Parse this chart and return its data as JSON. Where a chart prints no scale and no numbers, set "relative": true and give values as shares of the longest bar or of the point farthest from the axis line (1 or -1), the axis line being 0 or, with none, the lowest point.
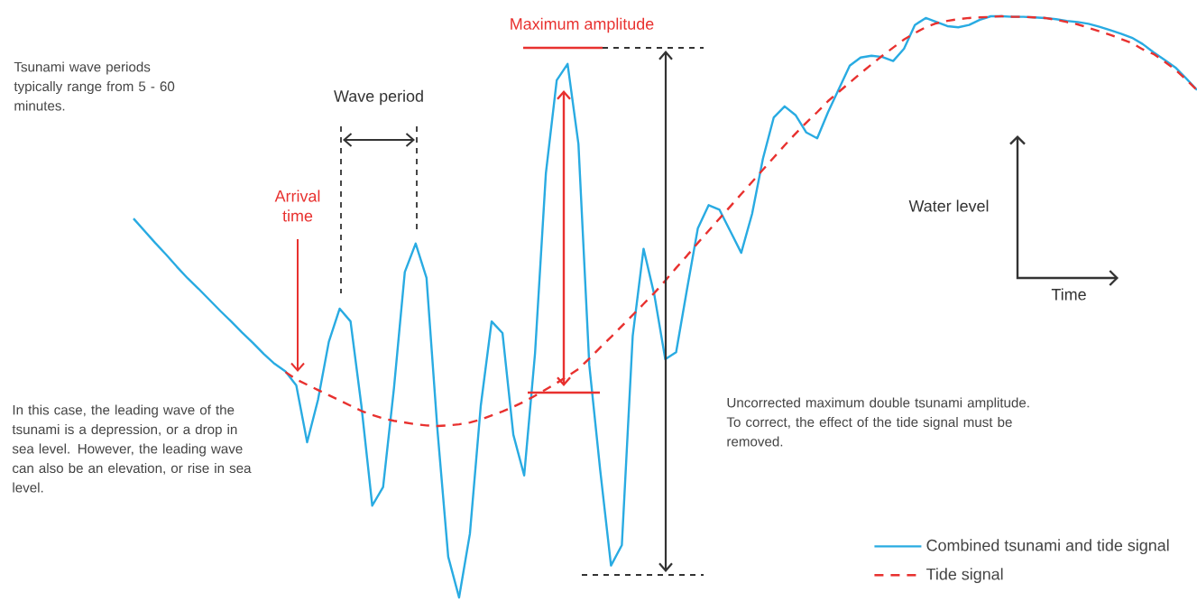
{
  "chart_data": {
    "type": "line",
    "relative": true,
    "tick_labels": false,
    "legend": "bottom right",
    "xlabel": "Time",
    "ylabel": "Water level",
    "categories": [
      null,
      null,
      null,
      null,
      null,
      null,
      null,
      null,
      null,
      null,
      null,
      null,
      null,
      null,
      null,
      null,
      null,
      null,
      null,
      null,
      null,
      null,
      null,
      null,
      null,
      null,
      null,
      null,
      null,
      null,
      null,
      null,
      null,
      null,
      null,
      null,
      null,
      null,
      null,
      null,
      null,
      null,
      null,
      null,
      null,
      null,
      null,
      null,
      null,
      null,
      null,
      null,
      null,
      null,
      null,
      null,
      null,
      null,
      null,
      null,
      null,
      null,
      null,
      null,
      null,
      null,
      null,
      null,
      null,
      null,
      null,
      null,
      null,
      null,
      null,
      null,
      null,
      null,
      null,
      null,
      null,
      null,
      null,
      null,
      null,
      null,
      null,
      null,
      null,
      null,
      null,
      null,
      null,
      null,
      null,
      null,
      null,
      null,
      null
    ],
    "annotations": [
      "Tsunami wave periods typically range from 5 - 60 minutes.",
      "Wave period",
      "Arrival time",
      "Maximum amplitude",
      "In this case, the leading wave of the tsunami is a depression, or a drop in sea level. However, the leading wave can also be an elevation, or rise in sea level.",
      "Uncorrected maximum double tsunami amplitude. To correct, the effect of the tide signal must be removed."
    ],
    "series": [
      {
        "name": "Combined tsunami and tide signal",
        "color": "#29abe2",
        "line_style": "solid",
        "values": [
          0.652,
          0.631,
          0.61,
          0.59,
          0.569,
          0.549,
          0.531,
          0.512,
          0.493,
          0.475,
          0.456,
          0.438,
          0.419,
          0.402,
          0.389,
          0.365,
          0.267,
          0.34,
          0.44,
          0.497,
          0.475,
          0.33,
          0.158,
          0.19,
          0.36,
          0.56,
          0.609,
          0.55,
          0.29,
          0.07,
          0,
          0.11,
          0.33,
          0.475,
          0.455,
          0.28,
          0.21,
          0.42,
          0.73,
          0.89,
          0.918,
          0.78,
          0.4,
          0.22,
          0.055,
          0.09,
          0.45,
          0.6,
          0.52,
          0.41,
          0.422,
          0.53,
          0.635,
          0.675,
          0.667,
          0.63,
          0.593,
          0.66,
          0.755,
          0.826,
          0.845,
          0.83,
          0.8,
          0.79,
          0.835,
          0.875,
          0.915,
          0.929,
          0.932,
          0.93,
          0.923,
          0.944,
          0.985,
          0.997,
          0.99,
          0.983,
          0.981,
          0.985,
          0.994,
          1,
          1,
          0.999,
          0.999,
          0.998,
          0.997,
          0.995,
          0.992,
          0.99,
          0.987,
          0.982,
          0.976,
          0.97,
          0.963,
          0.952,
          0.938,
          0.925,
          0.912,
          0.893,
          0.873
        ]
      },
      {
        "name": "Tide signal",
        "color": "#e8312f",
        "line_style": "dashed",
        "values": [
          null,
          null,
          null,
          null,
          null,
          null,
          null,
          null,
          null,
          null,
          null,
          null,
          null,
          null,
          0.388,
          0.375,
          0.366,
          0.357,
          0.348,
          0.339,
          0.33,
          0.321,
          0.314,
          0.308,
          0.304,
          0.301,
          0.298,
          0.296,
          0.295,
          0.296,
          0.298,
          0.301,
          0.306,
          0.313,
          0.32,
          0.328,
          0.337,
          0.347,
          0.358,
          0.369,
          0.381,
          0.393,
          0.411,
          0.43,
          0.448,
          0.467,
          0.486,
          0.505,
          0.524,
          0.545,
          0.567,
          0.588,
          0.61,
          0.631,
          0.652,
          0.673,
          0.694,
          0.715,
          0.736,
          0.757,
          0.778,
          0.798,
          0.817,
          0.835,
          0.854,
          0.87,
          0.886,
          0.902,
          0.917,
          0.932,
          0.946,
          0.96,
          0.971,
          0.981,
          0.988,
          0.992,
          0.995,
          0.997,
          0.998,
          0.999,
          1,
          0.999,
          0.999,
          0.998,
          0.997,
          0.994,
          0.99,
          0.986,
          0.98,
          0.974,
          0.968,
          0.961,
          0.954,
          0.943,
          0.935,
          0.922,
          0.908,
          0.891,
          0.873
        ]
      }
    ]
  }
}
